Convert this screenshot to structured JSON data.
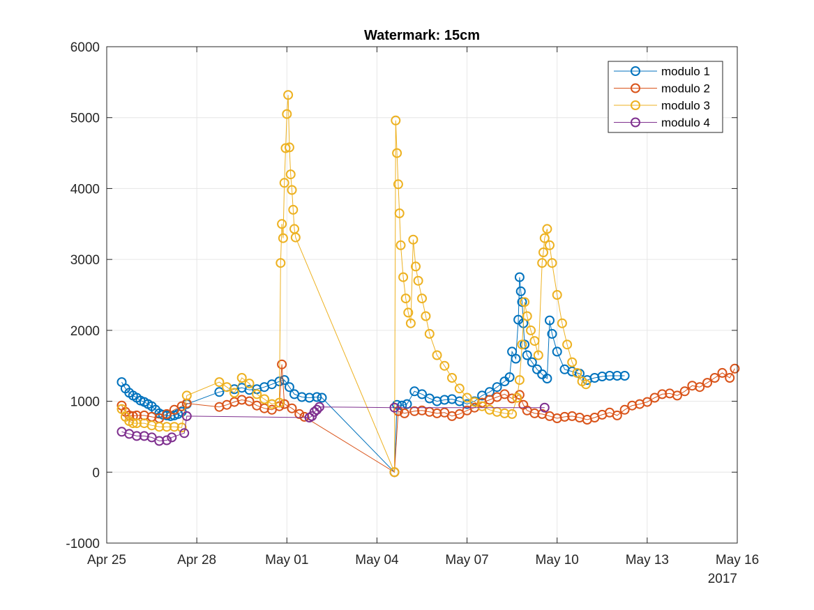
{
  "chart_data": {
    "type": "line",
    "title": "Watermark: 15cm",
    "xlabel": "",
    "ylabel": "",
    "ylim": [
      -1000,
      6000
    ],
    "yticks": [
      -1000,
      0,
      1000,
      2000,
      3000,
      4000,
      5000,
      6000
    ],
    "xlim": [
      "2017-04-25",
      "2017-05-16"
    ],
    "xticks": [
      {
        "date": "2017-04-25",
        "label": "Apr 25"
      },
      {
        "date": "2017-04-28",
        "label": "Apr 28"
      },
      {
        "date": "2017-05-01",
        "label": "May 01"
      },
      {
        "date": "2017-05-04",
        "label": "May 04"
      },
      {
        "date": "2017-05-07",
        "label": "May 07"
      },
      {
        "date": "2017-05-10",
        "label": "May 10"
      },
      {
        "date": "2017-05-13",
        "label": "May 13"
      },
      {
        "date": "2017-05-16",
        "label": "May 16"
      }
    ],
    "x_year_label": "2017",
    "grid": true,
    "legend_position": "top-right",
    "marker": "circle",
    "series": [
      {
        "name": "modulo 1",
        "color": "#0072BD",
        "points": [
          [
            "2017-04-25 12:00",
            1270
          ],
          [
            "2017-04-25 15:00",
            1180
          ],
          [
            "2017-04-25 18:00",
            1120
          ],
          [
            "2017-04-25 21:00",
            1080
          ],
          [
            "2017-04-26 00:00",
            1050
          ],
          [
            "2017-04-26 03:00",
            1010
          ],
          [
            "2017-04-26 06:00",
            990
          ],
          [
            "2017-04-26 09:00",
            960
          ],
          [
            "2017-04-26 12:00",
            930
          ],
          [
            "2017-04-26 15:00",
            880
          ],
          [
            "2017-04-26 18:00",
            830
          ],
          [
            "2017-04-26 21:00",
            810
          ],
          [
            "2017-04-27 00:00",
            800
          ],
          [
            "2017-04-27 03:00",
            790
          ],
          [
            "2017-04-27 06:00",
            800
          ],
          [
            "2017-04-27 09:00",
            820
          ],
          [
            "2017-04-27 12:00",
            850
          ],
          [
            "2017-04-27 16:00",
            960
          ],
          [
            "2017-04-28 18:00",
            1130
          ],
          [
            "2017-04-29 06:00",
            1170
          ],
          [
            "2017-04-29 12:00",
            1190
          ],
          [
            "2017-04-29 18:00",
            1160
          ],
          [
            "2017-04-30 00:00",
            1170
          ],
          [
            "2017-04-30 06:00",
            1200
          ],
          [
            "2017-04-30 12:00",
            1240
          ],
          [
            "2017-04-30 18:00",
            1280
          ],
          [
            "2017-04-30 22:00",
            1300
          ],
          [
            "2017-05-01 02:00",
            1200
          ],
          [
            "2017-05-01 06:00",
            1100
          ],
          [
            "2017-05-01 12:00",
            1060
          ],
          [
            "2017-05-01 18:00",
            1050
          ],
          [
            "2017-05-02 00:00",
            1060
          ],
          [
            "2017-05-02 04:00",
            1050
          ],
          [
            "2017-05-04 14:00",
            0
          ],
          [
            "2017-05-04 16:00",
            950
          ],
          [
            "2017-05-04 20:00",
            940
          ],
          [
            "2017-05-05 00:00",
            960
          ],
          [
            "2017-05-05 06:00",
            1140
          ],
          [
            "2017-05-05 12:00",
            1100
          ],
          [
            "2017-05-05 18:00",
            1040
          ],
          [
            "2017-05-06 00:00",
            1000
          ],
          [
            "2017-05-06 06:00",
            1020
          ],
          [
            "2017-05-06 12:00",
            1030
          ],
          [
            "2017-05-06 18:00",
            1000
          ],
          [
            "2017-05-07 00:00",
            960
          ],
          [
            "2017-05-07 06:00",
            1000
          ],
          [
            "2017-05-07 12:00",
            1080
          ],
          [
            "2017-05-07 18:00",
            1130
          ],
          [
            "2017-05-08 00:00",
            1200
          ],
          [
            "2017-05-08 06:00",
            1280
          ],
          [
            "2017-05-08 10:00",
            1340
          ],
          [
            "2017-05-08 12:00",
            1700
          ],
          [
            "2017-05-08 15:00",
            1600
          ],
          [
            "2017-05-08 17:00",
            2150
          ],
          [
            "2017-05-08 18:00",
            2750
          ],
          [
            "2017-05-08 19:00",
            2550
          ],
          [
            "2017-05-08 20:00",
            2400
          ],
          [
            "2017-05-08 21:00",
            2100
          ],
          [
            "2017-05-08 22:00",
            1800
          ],
          [
            "2017-05-09 00:00",
            1650
          ],
          [
            "2017-05-09 04:00",
            1550
          ],
          [
            "2017-05-09 08:00",
            1450
          ],
          [
            "2017-05-09 12:00",
            1380
          ],
          [
            "2017-05-09 16:00",
            1320
          ],
          [
            "2017-05-09 18:00",
            2140
          ],
          [
            "2017-05-09 20:00",
            1950
          ],
          [
            "2017-05-10 00:00",
            1700
          ],
          [
            "2017-05-10 06:00",
            1450
          ],
          [
            "2017-05-10 12:00",
            1420
          ],
          [
            "2017-05-10 18:00",
            1390
          ],
          [
            "2017-05-11 00:00",
            1300
          ],
          [
            "2017-05-11 06:00",
            1330
          ],
          [
            "2017-05-11 12:00",
            1350
          ],
          [
            "2017-05-11 18:00",
            1360
          ],
          [
            "2017-05-12 00:00",
            1360
          ],
          [
            "2017-05-12 06:00",
            1360
          ]
        ]
      },
      {
        "name": "modulo 2",
        "color": "#D95319",
        "points": [
          [
            "2017-04-25 12:00",
            940
          ],
          [
            "2017-04-25 15:00",
            850
          ],
          [
            "2017-04-25 18:00",
            800
          ],
          [
            "2017-04-25 21:00",
            790
          ],
          [
            "2017-04-26 00:00",
            800
          ],
          [
            "2017-04-26 06:00",
            800
          ],
          [
            "2017-04-26 12:00",
            780
          ],
          [
            "2017-04-26 18:00",
            760
          ],
          [
            "2017-04-27 00:00",
            820
          ],
          [
            "2017-04-27 06:00",
            880
          ],
          [
            "2017-04-27 12:00",
            930
          ],
          [
            "2017-04-27 16:00",
            970
          ],
          [
            "2017-04-28 18:00",
            920
          ],
          [
            "2017-04-29 00:00",
            950
          ],
          [
            "2017-04-29 06:00",
            990
          ],
          [
            "2017-04-29 12:00",
            1020
          ],
          [
            "2017-04-29 18:00",
            1000
          ],
          [
            "2017-04-30 00:00",
            940
          ],
          [
            "2017-04-30 06:00",
            900
          ],
          [
            "2017-04-30 12:00",
            880
          ],
          [
            "2017-04-30 18:00",
            930
          ],
          [
            "2017-04-30 20:00",
            1520
          ],
          [
            "2017-04-30 22:00",
            960
          ],
          [
            "2017-05-01 04:00",
            900
          ],
          [
            "2017-05-01 10:00",
            820
          ],
          [
            "2017-05-01 14:00",
            780
          ],
          [
            "2017-05-04 14:00",
            0
          ],
          [
            "2017-05-04 17:00",
            860
          ],
          [
            "2017-05-04 22:00",
            830
          ],
          [
            "2017-05-05 06:00",
            860
          ],
          [
            "2017-05-05 12:00",
            870
          ],
          [
            "2017-05-05 18:00",
            850
          ],
          [
            "2017-05-06 00:00",
            830
          ],
          [
            "2017-05-06 06:00",
            840
          ],
          [
            "2017-05-06 12:00",
            790
          ],
          [
            "2017-05-06 18:00",
            820
          ],
          [
            "2017-05-07 00:00",
            870
          ],
          [
            "2017-05-07 06:00",
            910
          ],
          [
            "2017-05-07 12:00",
            980
          ],
          [
            "2017-05-07 18:00",
            1020
          ],
          [
            "2017-05-08 00:00",
            1060
          ],
          [
            "2017-05-08 06:00",
            1100
          ],
          [
            "2017-05-08 12:00",
            1040
          ],
          [
            "2017-05-08 18:00",
            1090
          ],
          [
            "2017-05-08 21:00",
            950
          ],
          [
            "2017-05-09 00:00",
            870
          ],
          [
            "2017-05-09 06:00",
            830
          ],
          [
            "2017-05-09 12:00",
            820
          ],
          [
            "2017-05-09 18:00",
            790
          ],
          [
            "2017-05-10 00:00",
            760
          ],
          [
            "2017-05-10 06:00",
            780
          ],
          [
            "2017-05-10 12:00",
            790
          ],
          [
            "2017-05-10 18:00",
            770
          ],
          [
            "2017-05-11 00:00",
            740
          ],
          [
            "2017-05-11 06:00",
            770
          ],
          [
            "2017-05-11 12:00",
            810
          ],
          [
            "2017-05-11 18:00",
            840
          ],
          [
            "2017-05-12 00:00",
            800
          ],
          [
            "2017-05-12 06:00",
            880
          ],
          [
            "2017-05-12 12:00",
            940
          ],
          [
            "2017-05-12 18:00",
            960
          ],
          [
            "2017-05-13 00:00",
            990
          ],
          [
            "2017-05-13 06:00",
            1050
          ],
          [
            "2017-05-13 12:00",
            1100
          ],
          [
            "2017-05-13 18:00",
            1110
          ],
          [
            "2017-05-14 00:00",
            1080
          ],
          [
            "2017-05-14 06:00",
            1140
          ],
          [
            "2017-05-14 12:00",
            1220
          ],
          [
            "2017-05-14 18:00",
            1200
          ],
          [
            "2017-05-15 00:00",
            1260
          ],
          [
            "2017-05-15 06:00",
            1330
          ],
          [
            "2017-05-15 12:00",
            1400
          ],
          [
            "2017-05-15 18:00",
            1330
          ],
          [
            "2017-05-15 22:00",
            1460
          ]
        ]
      },
      {
        "name": "modulo 3",
        "color": "#EDB120",
        "points": [
          [
            "2017-04-25 12:00",
            890
          ],
          [
            "2017-04-25 15:00",
            780
          ],
          [
            "2017-04-25 18:00",
            720
          ],
          [
            "2017-04-25 21:00",
            690
          ],
          [
            "2017-04-26 00:00",
            690
          ],
          [
            "2017-04-26 06:00",
            690
          ],
          [
            "2017-04-26 12:00",
            660
          ],
          [
            "2017-04-26 18:00",
            640
          ],
          [
            "2017-04-27 00:00",
            640
          ],
          [
            "2017-04-27 06:00",
            640
          ],
          [
            "2017-04-27 12:00",
            630
          ],
          [
            "2017-04-27 16:00",
            1080
          ],
          [
            "2017-04-28 18:00",
            1270
          ],
          [
            "2017-04-29 00:00",
            1200
          ],
          [
            "2017-04-29 06:00",
            1120
          ],
          [
            "2017-04-29 12:00",
            1330
          ],
          [
            "2017-04-29 18:00",
            1250
          ],
          [
            "2017-04-30 00:00",
            1100
          ],
          [
            "2017-04-30 06:00",
            1030
          ],
          [
            "2017-04-30 12:00",
            960
          ],
          [
            "2017-04-30 18:00",
            980
          ],
          [
            "2017-04-30 19:00",
            2950
          ],
          [
            "2017-04-30 20:00",
            3500
          ],
          [
            "2017-04-30 21:00",
            3300
          ],
          [
            "2017-04-30 22:00",
            4080
          ],
          [
            "2017-04-30 23:00",
            4570
          ],
          [
            "2017-05-01 00:00",
            5050
          ],
          [
            "2017-05-01 01:00",
            5320
          ],
          [
            "2017-05-01 02:00",
            4580
          ],
          [
            "2017-05-01 03:00",
            4200
          ],
          [
            "2017-05-01 04:00",
            3980
          ],
          [
            "2017-05-01 05:00",
            3700
          ],
          [
            "2017-05-01 06:00",
            3430
          ],
          [
            "2017-05-01 07:00",
            3310
          ],
          [
            "2017-05-04 14:00",
            0
          ],
          [
            "2017-05-04 15:00",
            4960
          ],
          [
            "2017-05-04 16:00",
            4500
          ],
          [
            "2017-05-04 17:00",
            4060
          ],
          [
            "2017-05-04 18:00",
            3650
          ],
          [
            "2017-05-04 19:00",
            3200
          ],
          [
            "2017-05-04 21:00",
            2750
          ],
          [
            "2017-05-04 23:00",
            2450
          ],
          [
            "2017-05-05 01:00",
            2250
          ],
          [
            "2017-05-05 03:00",
            2100
          ],
          [
            "2017-05-05 05:00",
            3280
          ],
          [
            "2017-05-05 07:00",
            2900
          ],
          [
            "2017-05-05 09:00",
            2700
          ],
          [
            "2017-05-05 12:00",
            2450
          ],
          [
            "2017-05-05 15:00",
            2200
          ],
          [
            "2017-05-05 18:00",
            1950
          ],
          [
            "2017-05-06 00:00",
            1650
          ],
          [
            "2017-05-06 06:00",
            1500
          ],
          [
            "2017-05-06 12:00",
            1330
          ],
          [
            "2017-05-06 18:00",
            1180
          ],
          [
            "2017-05-07 00:00",
            1050
          ],
          [
            "2017-05-07 06:00",
            990
          ],
          [
            "2017-05-07 12:00",
            930
          ],
          [
            "2017-05-07 18:00",
            880
          ],
          [
            "2017-05-08 00:00",
            850
          ],
          [
            "2017-05-08 06:00",
            830
          ],
          [
            "2017-05-08 12:00",
            820
          ],
          [
            "2017-05-08 16:00",
            1050
          ],
          [
            "2017-05-08 18:00",
            1300
          ],
          [
            "2017-05-08 20:00",
            1800
          ],
          [
            "2017-05-08 22:00",
            2400
          ],
          [
            "2017-05-09 00:00",
            2200
          ],
          [
            "2017-05-09 03:00",
            2000
          ],
          [
            "2017-05-09 06:00",
            1850
          ],
          [
            "2017-05-09 09:00",
            1650
          ],
          [
            "2017-05-09 12:00",
            2950
          ],
          [
            "2017-05-09 13:00",
            3100
          ],
          [
            "2017-05-09 14:00",
            3300
          ],
          [
            "2017-05-09 16:00",
            3430
          ],
          [
            "2017-05-09 18:00",
            3200
          ],
          [
            "2017-05-09 20:00",
            2950
          ],
          [
            "2017-05-10 00:00",
            2500
          ],
          [
            "2017-05-10 04:00",
            2100
          ],
          [
            "2017-05-10 08:00",
            1800
          ],
          [
            "2017-05-10 12:00",
            1550
          ],
          [
            "2017-05-10 16:00",
            1400
          ],
          [
            "2017-05-10 20:00",
            1280
          ],
          [
            "2017-05-10 23:00",
            1240
          ]
        ]
      },
      {
        "name": "modulo 4",
        "color": "#7E2F8E",
        "points": [
          [
            "2017-04-25 12:00",
            570
          ],
          [
            "2017-04-25 18:00",
            540
          ],
          [
            "2017-04-26 00:00",
            510
          ],
          [
            "2017-04-26 06:00",
            510
          ],
          [
            "2017-04-26 12:00",
            490
          ],
          [
            "2017-04-26 18:00",
            440
          ],
          [
            "2017-04-27 00:00",
            450
          ],
          [
            "2017-04-27 04:00",
            490
          ],
          [
            "2017-04-27 14:00",
            550
          ],
          [
            "2017-04-27 16:00",
            790
          ],
          [
            "2017-05-01 18:00",
            770
          ],
          [
            "2017-05-01 20:00",
            790
          ],
          [
            "2017-05-01 22:00",
            850
          ],
          [
            "2017-05-02 00:00",
            880
          ],
          [
            "2017-05-02 02:00",
            920
          ],
          [
            "2017-05-04 14:00",
            910
          ],
          [
            "2017-05-09 14:00",
            910
          ]
        ]
      }
    ]
  }
}
